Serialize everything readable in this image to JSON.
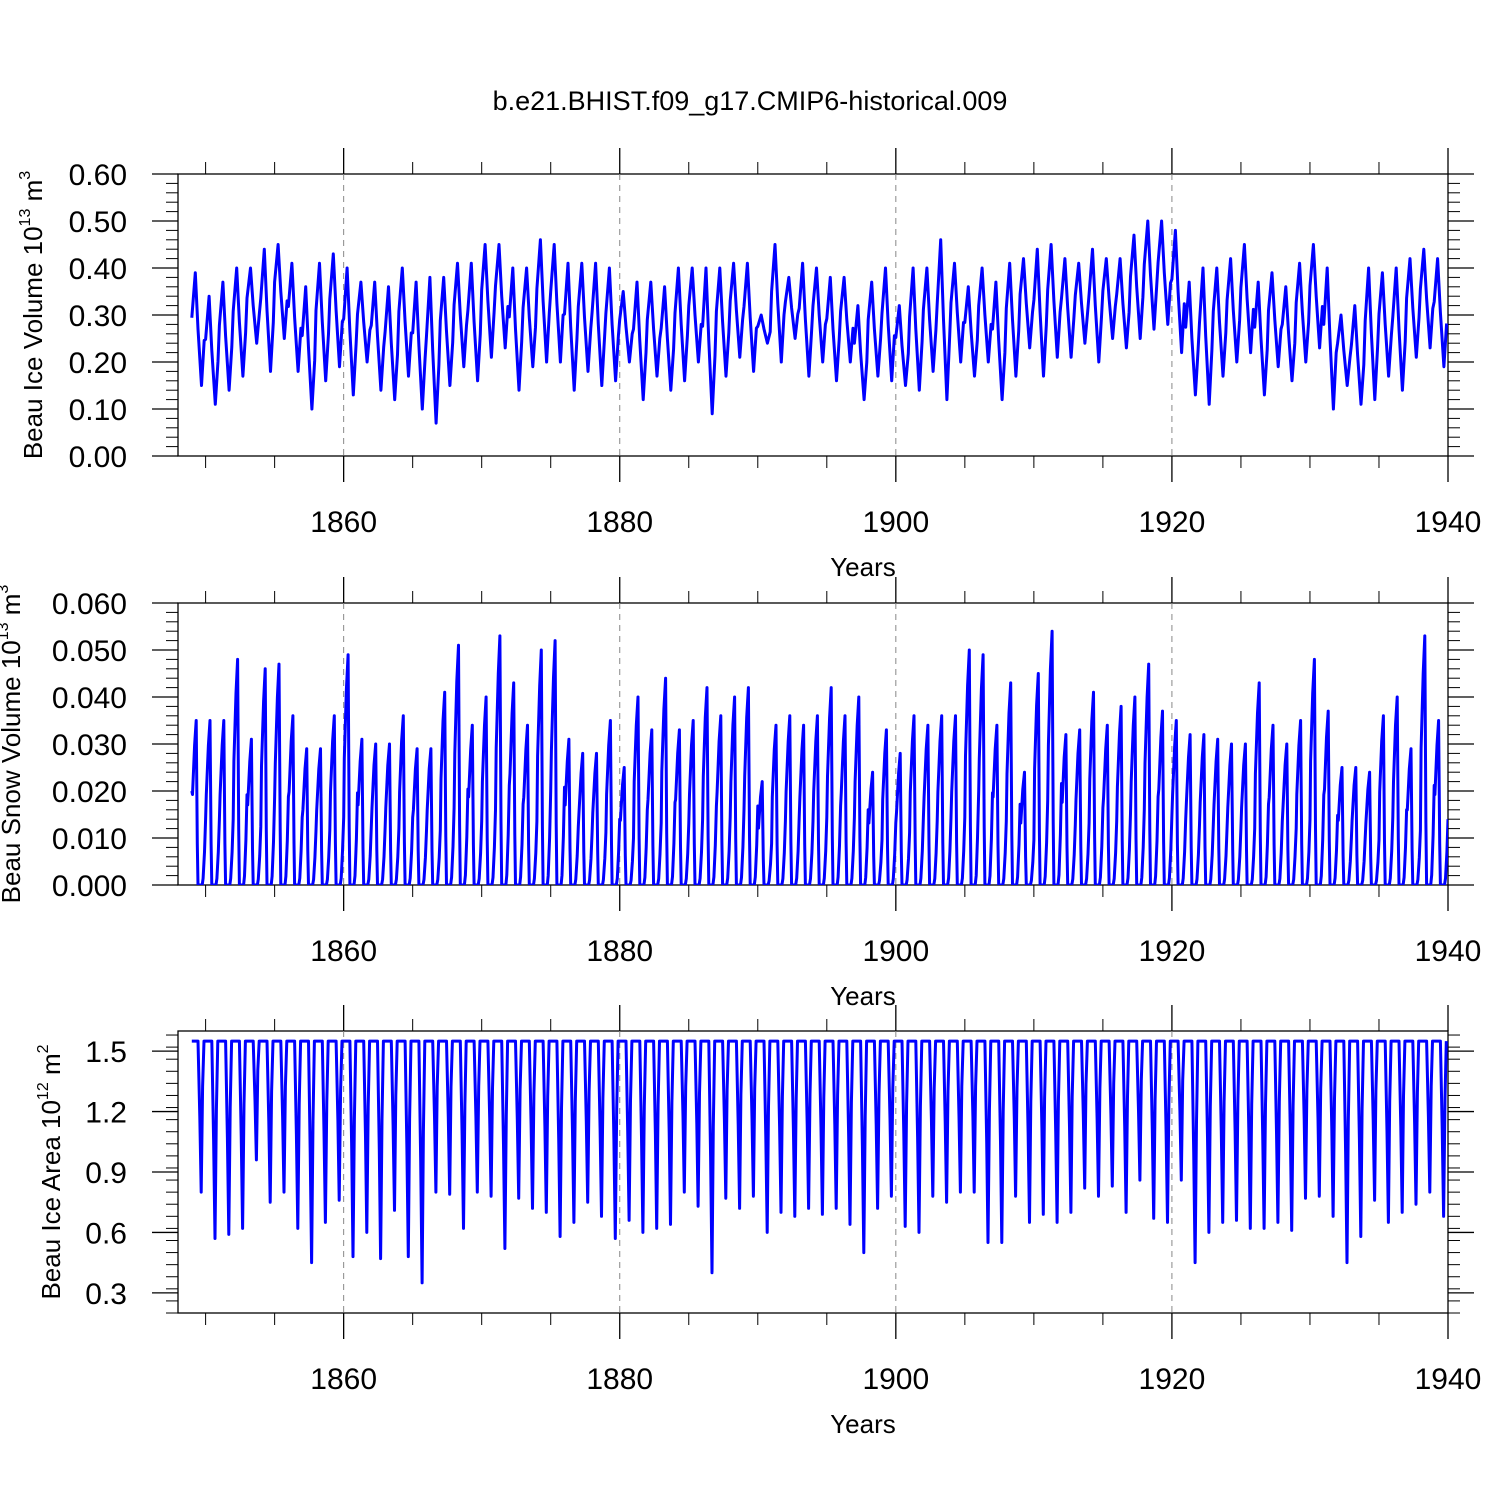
{
  "figure": {
    "title": "b.e21.BHIST.f09_g17.CMIP6-historical.009"
  },
  "chart_data": [
    {
      "type": "line",
      "name": "ice-volume",
      "color": "#0000ff",
      "xlabel": "Years",
      "ylabel_prefix": "Beau Ice Volume 10",
      "ylabel_exp": "13",
      "ylabel_unit": " m",
      "ylabel_unit_exp": "3",
      "xlim": [
        1848,
        1940
      ],
      "ylim": [
        0,
        0.6
      ],
      "xticks": [
        1860,
        1880,
        1900,
        1920,
        1940
      ],
      "xtick_labels": [
        "1860",
        "1880",
        "1900",
        "1920",
        "1940"
      ],
      "yticks": [
        0,
        0.1,
        0.2,
        0.3,
        0.4,
        0.5,
        0.6
      ],
      "ytick_labels": [
        "0.00",
        "0.10",
        "0.20",
        "0.30",
        "0.40",
        "0.50",
        "0.60"
      ],
      "grid": "dashed vertical at major ticks",
      "series": [
        {
          "name": "Beau Ice Volume",
          "years": [
            1849,
            1850,
            1851,
            1852,
            1853,
            1854,
            1855,
            1856,
            1857,
            1858,
            1859,
            1860,
            1861,
            1862,
            1863,
            1864,
            1865,
            1866,
            1867,
            1868,
            1869,
            1870,
            1871,
            1872,
            1873,
            1874,
            1875,
            1876,
            1877,
            1878,
            1879,
            1880,
            1881,
            1882,
            1883,
            1884,
            1885,
            1886,
            1887,
            1888,
            1889,
            1890,
            1891,
            1892,
            1893,
            1894,
            1895,
            1896,
            1897,
            1898,
            1899,
            1900,
            1901,
            1902,
            1903,
            1904,
            1905,
            1906,
            1907,
            1908,
            1909,
            1910,
            1911,
            1912,
            1913,
            1914,
            1915,
            1916,
            1917,
            1918,
            1919,
            1920,
            1921,
            1922,
            1923,
            1924,
            1925,
            1926,
            1927,
            1928,
            1929,
            1930,
            1931,
            1932,
            1933,
            1934,
            1935,
            1936,
            1937,
            1938,
            1939
          ],
          "max": [
            0.39,
            0.34,
            0.37,
            0.4,
            0.4,
            0.44,
            0.45,
            0.41,
            0.36,
            0.41,
            0.43,
            0.4,
            0.37,
            0.37,
            0.36,
            0.4,
            0.37,
            0.38,
            0.38,
            0.41,
            0.41,
            0.45,
            0.45,
            0.4,
            0.4,
            0.46,
            0.45,
            0.41,
            0.41,
            0.41,
            0.4,
            0.35,
            0.37,
            0.37,
            0.36,
            0.4,
            0.4,
            0.4,
            0.4,
            0.41,
            0.41,
            0.3,
            0.45,
            0.38,
            0.41,
            0.4,
            0.38,
            0.38,
            0.32,
            0.37,
            0.4,
            0.32,
            0.4,
            0.4,
            0.46,
            0.41,
            0.36,
            0.4,
            0.37,
            0.41,
            0.42,
            0.44,
            0.45,
            0.42,
            0.41,
            0.44,
            0.42,
            0.42,
            0.47,
            0.5,
            0.5,
            0.48,
            0.37,
            0.4,
            0.4,
            0.42,
            0.45,
            0.37,
            0.39,
            0.36,
            0.41,
            0.45,
            0.4,
            0.3,
            0.32,
            0.4,
            0.39,
            0.4,
            0.42,
            0.44,
            0.42
          ],
          "min": [
            0.15,
            0.11,
            0.14,
            0.17,
            0.24,
            0.18,
            0.25,
            0.18,
            0.1,
            0.16,
            0.19,
            0.13,
            0.2,
            0.14,
            0.12,
            0.17,
            0.1,
            0.07,
            0.15,
            0.19,
            0.16,
            0.21,
            0.23,
            0.14,
            0.19,
            0.2,
            0.2,
            0.14,
            0.18,
            0.15,
            0.16,
            0.2,
            0.12,
            0.17,
            0.14,
            0.16,
            0.2,
            0.09,
            0.17,
            0.21,
            0.18,
            0.24,
            0.2,
            0.25,
            0.17,
            0.2,
            0.16,
            0.2,
            0.12,
            0.17,
            0.16,
            0.15,
            0.14,
            0.18,
            0.12,
            0.2,
            0.17,
            0.2,
            0.12,
            0.17,
            0.23,
            0.17,
            0.21,
            0.21,
            0.24,
            0.2,
            0.25,
            0.23,
            0.25,
            0.27,
            0.28,
            0.22,
            0.13,
            0.11,
            0.17,
            0.2,
            0.22,
            0.13,
            0.19,
            0.16,
            0.2,
            0.23,
            0.1,
            0.15,
            0.11,
            0.12,
            0.17,
            0.14,
            0.21,
            0.23,
            0.19
          ]
        }
      ]
    },
    {
      "type": "line",
      "name": "snow-volume",
      "color": "#0000ff",
      "xlabel": "Years",
      "ylabel_prefix": "Beau Snow Volume 10",
      "ylabel_exp": "13",
      "ylabel_unit": " m",
      "ylabel_unit_exp": "3",
      "xlim": [
        1848,
        1940
      ],
      "ylim": [
        0,
        0.06
      ],
      "xticks": [
        1860,
        1880,
        1900,
        1920,
        1940
      ],
      "xtick_labels": [
        "1860",
        "1880",
        "1900",
        "1920",
        "1940"
      ],
      "yticks": [
        0,
        0.01,
        0.02,
        0.03,
        0.04,
        0.05,
        0.06
      ],
      "ytick_labels": [
        "0.000",
        "0.010",
        "0.020",
        "0.030",
        "0.040",
        "0.050",
        "0.060"
      ],
      "grid": "dashed vertical at major ticks",
      "series": [
        {
          "name": "Beau Snow Volume",
          "years": [
            1849,
            1850,
            1851,
            1852,
            1853,
            1854,
            1855,
            1856,
            1857,
            1858,
            1859,
            1860,
            1861,
            1862,
            1863,
            1864,
            1865,
            1866,
            1867,
            1868,
            1869,
            1870,
            1871,
            1872,
            1873,
            1874,
            1875,
            1876,
            1877,
            1878,
            1879,
            1880,
            1881,
            1882,
            1883,
            1884,
            1885,
            1886,
            1887,
            1888,
            1889,
            1890,
            1891,
            1892,
            1893,
            1894,
            1895,
            1896,
            1897,
            1898,
            1899,
            1900,
            1901,
            1902,
            1903,
            1904,
            1905,
            1906,
            1907,
            1908,
            1909,
            1910,
            1911,
            1912,
            1913,
            1914,
            1915,
            1916,
            1917,
            1918,
            1919,
            1920,
            1921,
            1922,
            1923,
            1924,
            1925,
            1926,
            1927,
            1928,
            1929,
            1930,
            1931,
            1932,
            1933,
            1934,
            1935,
            1936,
            1937,
            1938,
            1939
          ],
          "max": [
            0.035,
            0.035,
            0.035,
            0.048,
            0.031,
            0.046,
            0.047,
            0.036,
            0.029,
            0.029,
            0.036,
            0.049,
            0.031,
            0.03,
            0.03,
            0.036,
            0.029,
            0.029,
            0.041,
            0.051,
            0.034,
            0.04,
            0.053,
            0.043,
            0.034,
            0.05,
            0.052,
            0.031,
            0.028,
            0.028,
            0.035,
            0.025,
            0.04,
            0.033,
            0.044,
            0.033,
            0.035,
            0.042,
            0.036,
            0.04,
            0.042,
            0.022,
            0.034,
            0.036,
            0.034,
            0.036,
            0.042,
            0.036,
            0.04,
            0.024,
            0.033,
            0.028,
            0.036,
            0.034,
            0.036,
            0.036,
            0.05,
            0.049,
            0.034,
            0.043,
            0.024,
            0.045,
            0.054,
            0.032,
            0.033,
            0.041,
            0.034,
            0.038,
            0.04,
            0.047,
            0.037,
            0.035,
            0.032,
            0.032,
            0.031,
            0.03,
            0.03,
            0.043,
            0.034,
            0.03,
            0.035,
            0.048,
            0.037,
            0.025,
            0.025,
            0.024,
            0.036,
            0.04,
            0.029,
            0.053,
            0.035
          ]
        }
      ]
    },
    {
      "type": "line",
      "name": "ice-area",
      "color": "#0000ff",
      "xlabel": "Years",
      "ylabel_prefix": "Beau Ice Area 10",
      "ylabel_exp": "12",
      "ylabel_unit": " m",
      "ylabel_unit_exp": "2",
      "xlim": [
        1848,
        1940
      ],
      "ylim": [
        0.2,
        1.6
      ],
      "xticks": [
        1860,
        1880,
        1900,
        1920,
        1940
      ],
      "xtick_labels": [
        "1860",
        "1880",
        "1900",
        "1920",
        "1940"
      ],
      "yticks": [
        0.3,
        0.6,
        0.9,
        1.2,
        1.5
      ],
      "ytick_labels": [
        "0.3",
        "0.6",
        "0.9",
        "1.2",
        "1.5"
      ],
      "grid": "dashed vertical at major ticks",
      "series": [
        {
          "name": "Beau Ice Area",
          "years": [
            1849,
            1850,
            1851,
            1852,
            1853,
            1854,
            1855,
            1856,
            1857,
            1858,
            1859,
            1860,
            1861,
            1862,
            1863,
            1864,
            1865,
            1866,
            1867,
            1868,
            1869,
            1870,
            1871,
            1872,
            1873,
            1874,
            1875,
            1876,
            1877,
            1878,
            1879,
            1880,
            1881,
            1882,
            1883,
            1884,
            1885,
            1886,
            1887,
            1888,
            1889,
            1890,
            1891,
            1892,
            1893,
            1894,
            1895,
            1896,
            1897,
            1898,
            1899,
            1900,
            1901,
            1902,
            1903,
            1904,
            1905,
            1906,
            1907,
            1908,
            1909,
            1910,
            1911,
            1912,
            1913,
            1914,
            1915,
            1916,
            1917,
            1918,
            1919,
            1920,
            1921,
            1922,
            1923,
            1924,
            1925,
            1926,
            1927,
            1928,
            1929,
            1930,
            1931,
            1932,
            1933,
            1934,
            1935,
            1936,
            1937,
            1938,
            1939
          ],
          "max": [
            1.55,
            1.55,
            1.55,
            1.55,
            1.55,
            1.55,
            1.55,
            1.55,
            1.55,
            1.55,
            1.55,
            1.55,
            1.55,
            1.55,
            1.55,
            1.55,
            1.55,
            1.55,
            1.55,
            1.55,
            1.55,
            1.55,
            1.55,
            1.55,
            1.55,
            1.55,
            1.55,
            1.55,
            1.55,
            1.55,
            1.55,
            1.55,
            1.55,
            1.55,
            1.55,
            1.55,
            1.55,
            1.55,
            1.55,
            1.55,
            1.55,
            1.55,
            1.55,
            1.55,
            1.55,
            1.55,
            1.55,
            1.55,
            1.55,
            1.55,
            1.55,
            1.55,
            1.55,
            1.55,
            1.55,
            1.55,
            1.55,
            1.55,
            1.55,
            1.55,
            1.55,
            1.55,
            1.55,
            1.55,
            1.55,
            1.55,
            1.55,
            1.55,
            1.55,
            1.55,
            1.55,
            1.55,
            1.55,
            1.55,
            1.55,
            1.55,
            1.55,
            1.55,
            1.55,
            1.55,
            1.55,
            1.55,
            1.55,
            1.55,
            1.55,
            1.55,
            1.55,
            1.55,
            1.55,
            1.55,
            1.55
          ],
          "min": [
            0.8,
            0.57,
            0.59,
            0.62,
            0.96,
            0.75,
            0.8,
            0.62,
            0.45,
            0.65,
            0.76,
            0.48,
            0.6,
            0.47,
            0.71,
            0.48,
            0.35,
            0.8,
            0.79,
            0.62,
            0.8,
            0.78,
            0.52,
            0.77,
            0.72,
            0.7,
            0.58,
            0.65,
            0.75,
            0.68,
            0.57,
            0.66,
            0.6,
            0.62,
            0.64,
            0.8,
            0.73,
            0.4,
            0.77,
            0.72,
            0.78,
            0.6,
            0.7,
            0.68,
            0.72,
            0.69,
            0.72,
            0.64,
            0.5,
            0.72,
            0.78,
            0.63,
            0.6,
            0.78,
            0.75,
            0.8,
            0.8,
            0.55,
            0.55,
            0.78,
            0.65,
            0.69,
            0.65,
            0.7,
            0.82,
            0.78,
            0.83,
            0.7,
            0.86,
            0.67,
            0.65,
            0.86,
            0.45,
            0.6,
            0.65,
            0.66,
            0.62,
            0.62,
            0.65,
            0.61,
            0.77,
            0.78,
            0.68,
            0.45,
            0.58,
            0.76,
            0.65,
            0.7,
            0.74,
            0.8,
            0.68
          ]
        }
      ]
    }
  ]
}
